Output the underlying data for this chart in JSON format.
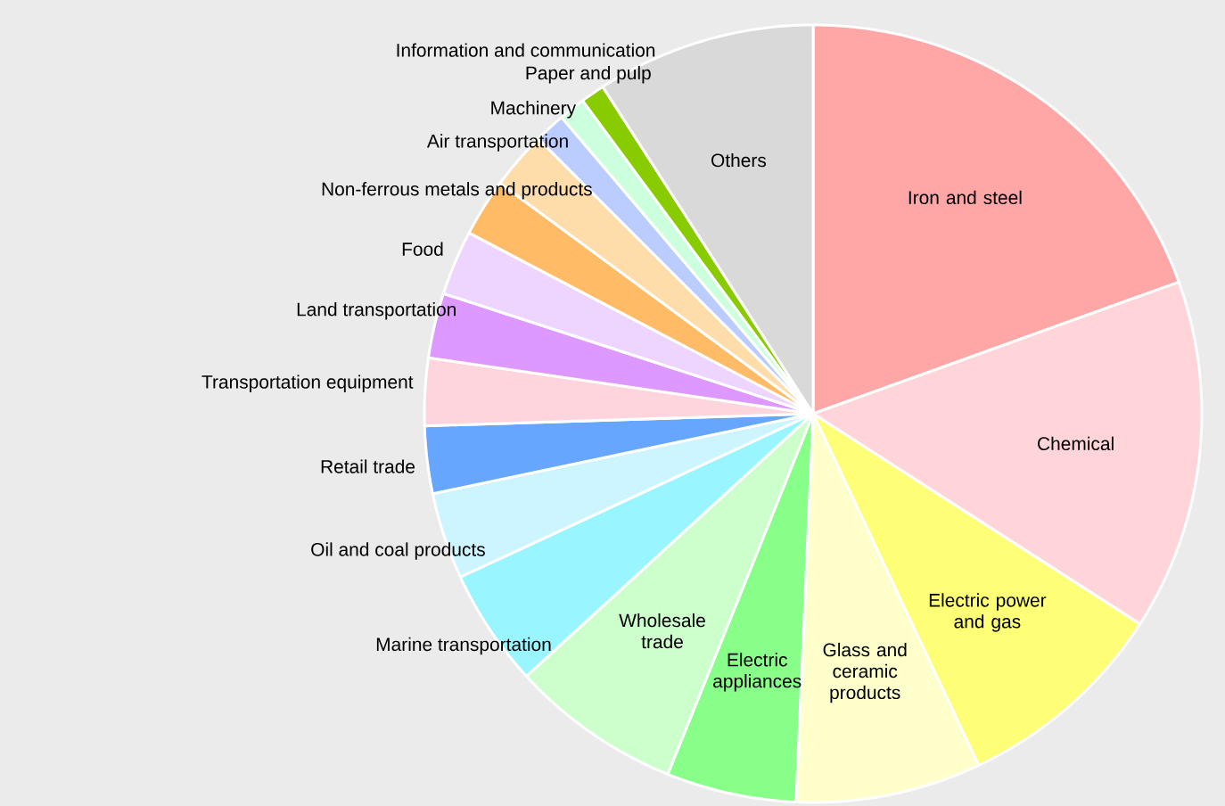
{
  "chart_data": {
    "type": "pie",
    "categories": [
      "Iron and steel",
      "Chemical",
      "Electric power and gas",
      "Glass and ceramic products",
      "Electric appliances",
      "Wholesale trade",
      "Marine transportation",
      "Oil and coal products",
      "Retail trade",
      "Transportation equipment",
      "Land transportation",
      "Food",
      "Non-ferrous metals and products",
      "Air transportation",
      "Machinery",
      "Information and communication",
      "Paper and pulp",
      "Others"
    ],
    "values": [
      19.5,
      14.6,
      8.9,
      7.7,
      5.4,
      7.1,
      4.9,
      3.6,
      2.8,
      2.8,
      2.7,
      2.7,
      2.4,
      2.4,
      1.3,
      1.1,
      1.0,
      9.1
    ],
    "colors": [
      "#ffa6a6",
      "#ffd5d9",
      "#ffff77",
      "#ffffcc",
      "#88ff88",
      "#ccffcc",
      "#99f5ff",
      "#ccf5ff",
      "#66a6ff",
      "#ffd5dd",
      "#dd99ff",
      "#eed5ff",
      "#ffbb66",
      "#ffddaa",
      "#bbccff",
      "#ccffdd",
      "#88cc00",
      "#d9d9d9"
    ]
  }
}
